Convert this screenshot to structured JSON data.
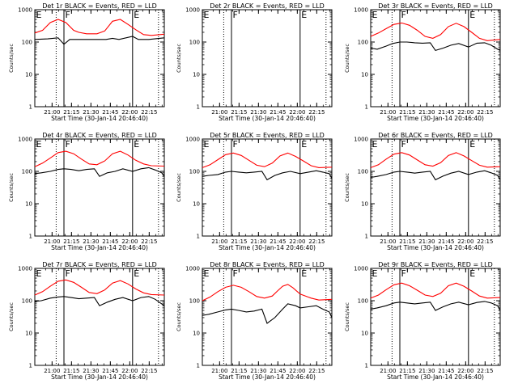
{
  "figure": {
    "xlabel": "Start Time (30-Jan-14 20:46:40)",
    "ylabel": "Counts/sec",
    "y_scale": "log",
    "ylim": [
      1,
      1000
    ],
    "y_ticks": [
      1,
      10,
      100,
      1000
    ],
    "y_tick_labels": [
      "1",
      "10",
      "100",
      "1000"
    ],
    "x_range_min": [
      0,
      100
    ],
    "x_ticks_min": [
      13.33,
      28.33,
      43.33,
      58.33,
      73.33,
      88.33
    ],
    "x_tick_labels": [
      "21:00",
      "21:15",
      "21:30",
      "21:45",
      "22:00",
      "22:15"
    ],
    "colors": {
      "events": "#000000",
      "lld": "#ff0000"
    },
    "markers": [
      {
        "label": "E",
        "x_min": 0,
        "style": "solid"
      },
      {
        "label": "F",
        "x_min": 22.5,
        "style": "solid"
      },
      {
        "label": "E",
        "x_min": 75.5,
        "style": "solid"
      },
      {
        "line_x_min": 16.5,
        "style": "dotted"
      },
      {
        "line_x_min": 95.5,
        "style": "dotted"
      }
    ],
    "x_grid": false,
    "y_grid": false
  },
  "chart_data": [
    {
      "type": "line",
      "title": "Det 1r BLACK = Events, RED = LLD",
      "series": [
        {
          "name": "Events",
          "color": "#000000",
          "x_min": [
            0,
            10,
            18,
            22.5,
            27,
            36,
            45,
            55,
            60,
            65,
            75.5,
            80,
            88,
            100
          ],
          "y": [
            120,
            125,
            135,
            85,
            120,
            120,
            120,
            120,
            130,
            120,
            150,
            120,
            120,
            135
          ]
        },
        {
          "name": "LLD",
          "color": "#ff0000",
          "x_min": [
            0,
            6,
            12,
            18,
            24,
            30,
            34,
            40,
            48,
            54,
            60,
            66,
            72,
            78,
            84,
            90,
            100
          ],
          "y": [
            190,
            230,
            400,
            500,
            400,
            230,
            200,
            180,
            180,
            220,
            440,
            500,
            350,
            240,
            170,
            160,
            175
          ]
        }
      ]
    },
    {
      "type": "line",
      "title": "Det 2r BLACK = Events, RED = LLD",
      "series": [
        {
          "name": "Events",
          "color": "#000000",
          "x_min": [],
          "y": []
        },
        {
          "name": "LLD",
          "color": "#ff0000",
          "x_min": [],
          "y": []
        }
      ]
    },
    {
      "type": "line",
      "title": "Det 3r BLACK = Events, RED = LLD",
      "series": [
        {
          "name": "Events",
          "color": "#000000",
          "x_min": [
            0,
            5,
            12,
            17,
            22.5,
            28,
            34,
            40,
            46,
            50,
            56,
            62,
            68,
            75.5,
            82,
            88,
            93,
            98,
            100
          ],
          "y": [
            65,
            60,
            75,
            90,
            100,
            100,
            95,
            92,
            95,
            55,
            65,
            80,
            90,
            70,
            92,
            95,
            80,
            60,
            55
          ]
        },
        {
          "name": "LLD",
          "color": "#ff0000",
          "x_min": [
            0,
            6,
            12,
            18,
            24,
            30,
            36,
            42,
            48,
            54,
            60,
            66,
            72,
            78,
            84,
            90,
            100
          ],
          "y": [
            150,
            190,
            260,
            350,
            390,
            330,
            230,
            150,
            130,
            170,
            300,
            380,
            300,
            200,
            130,
            110,
            120
          ]
        }
      ]
    },
    {
      "type": "line",
      "title": "Det 4r BLACK = Events, RED = LLD",
      "series": [
        {
          "name": "Events",
          "color": "#000000",
          "x_min": [
            0,
            5,
            12,
            18,
            22.5,
            28,
            34,
            40,
            46,
            50,
            56,
            62,
            68,
            75.5,
            82,
            88,
            93,
            98,
            100
          ],
          "y": [
            85,
            90,
            100,
            115,
            120,
            115,
            105,
            115,
            120,
            70,
            90,
            100,
            120,
            100,
            120,
            130,
            110,
            90,
            70
          ]
        },
        {
          "name": "LLD",
          "color": "#ff0000",
          "x_min": [
            0,
            6,
            12,
            18,
            24,
            30,
            36,
            42,
            48,
            54,
            60,
            66,
            72,
            78,
            84,
            90,
            100
          ],
          "y": [
            140,
            180,
            260,
            380,
            420,
            350,
            240,
            170,
            160,
            210,
            350,
            420,
            320,
            220,
            170,
            150,
            145
          ]
        }
      ]
    },
    {
      "type": "line",
      "title": "Det 5r BLACK = Events, RED = LLD",
      "series": [
        {
          "name": "Events",
          "color": "#000000",
          "x_min": [
            0,
            5,
            12,
            18,
            22.5,
            28,
            34,
            40,
            46,
            50,
            56,
            62,
            68,
            75.5,
            82,
            88,
            93,
            98,
            100
          ],
          "y": [
            70,
            75,
            80,
            95,
            100,
            95,
            90,
            95,
            100,
            55,
            75,
            90,
            100,
            85,
            95,
            105,
            95,
            85,
            60
          ]
        },
        {
          "name": "LLD",
          "color": "#ff0000",
          "x_min": [
            0,
            6,
            12,
            18,
            24,
            30,
            36,
            42,
            48,
            54,
            60,
            66,
            72,
            78,
            84,
            90,
            100
          ],
          "y": [
            130,
            160,
            230,
            330,
            370,
            310,
            220,
            155,
            140,
            180,
            300,
            370,
            290,
            210,
            150,
            130,
            135
          ]
        }
      ]
    },
    {
      "type": "line",
      "title": "Det 6r BLACK = Events, RED = LLD",
      "series": [
        {
          "name": "Events",
          "color": "#000000",
          "x_min": [
            0,
            5,
            12,
            18,
            22.5,
            28,
            34,
            40,
            46,
            50,
            56,
            62,
            68,
            75.5,
            82,
            88,
            93,
            98,
            100
          ],
          "y": [
            65,
            70,
            80,
            95,
            100,
            95,
            88,
            95,
            100,
            55,
            72,
            88,
            100,
            80,
            95,
            105,
            90,
            75,
            55
          ]
        },
        {
          "name": "LLD",
          "color": "#ff0000",
          "x_min": [
            0,
            6,
            12,
            18,
            24,
            30,
            36,
            42,
            48,
            54,
            60,
            66,
            72,
            78,
            84,
            90,
            100
          ],
          "y": [
            130,
            160,
            240,
            340,
            380,
            320,
            225,
            160,
            145,
            185,
            310,
            380,
            300,
            215,
            155,
            135,
            140
          ]
        }
      ]
    },
    {
      "type": "line",
      "title": "Det 7r BLACK = Events, RED = LLD",
      "series": [
        {
          "name": "Events",
          "color": "#000000",
          "x_min": [
            0,
            5,
            12,
            18,
            22.5,
            28,
            34,
            40,
            46,
            50,
            56,
            62,
            68,
            75.5,
            82,
            88,
            93,
            98,
            100
          ],
          "y": [
            95,
            100,
            120,
            130,
            135,
            125,
            115,
            120,
            125,
            70,
            90,
            110,
            125,
            100,
            125,
            135,
            110,
            80,
            70
          ]
        },
        {
          "name": "LLD",
          "color": "#ff0000",
          "x_min": [
            0,
            6,
            12,
            18,
            24,
            30,
            36,
            42,
            48,
            54,
            60,
            66,
            72,
            78,
            84,
            90,
            100
          ],
          "y": [
            150,
            190,
            280,
            400,
            440,
            370,
            260,
            180,
            165,
            215,
            350,
            420,
            330,
            230,
            175,
            155,
            150
          ]
        }
      ]
    },
    {
      "type": "line",
      "title": "Det 8r BLACK = Events, RED = LLD",
      "series": [
        {
          "name": "Events",
          "color": "#000000",
          "x_min": [
            0,
            5,
            12,
            18,
            22.5,
            28,
            34,
            40,
            46,
            50,
            56,
            62,
            66,
            72,
            75.5,
            82,
            88,
            93,
            98,
            100
          ],
          "y": [
            35,
            38,
            45,
            52,
            55,
            50,
            45,
            48,
            55,
            20,
            30,
            55,
            80,
            70,
            60,
            65,
            70,
            55,
            45,
            30
          ]
        },
        {
          "name": "LLD",
          "color": "#ff0000",
          "x_min": [
            0,
            6,
            12,
            18,
            24,
            30,
            36,
            42,
            48,
            54,
            58,
            62,
            66,
            70,
            75.5,
            84,
            90,
            100
          ],
          "y": [
            100,
            130,
            190,
            260,
            300,
            260,
            190,
            135,
            120,
            140,
            200,
            280,
            320,
            250,
            160,
            120,
            105,
            110
          ]
        }
      ]
    },
    {
      "type": "line",
      "title": "Det 9r BLACK = Events, RED = LLD",
      "series": [
        {
          "name": "Events",
          "color": "#000000",
          "x_min": [
            0,
            5,
            12,
            18,
            22.5,
            28,
            34,
            40,
            46,
            50,
            56,
            62,
            68,
            75.5,
            82,
            88,
            93,
            98,
            100
          ],
          "y": [
            55,
            60,
            70,
            85,
            90,
            85,
            80,
            85,
            90,
            50,
            65,
            80,
            90,
            75,
            88,
            95,
            85,
            70,
            50
          ]
        },
        {
          "name": "LLD",
          "color": "#ff0000",
          "x_min": [
            0,
            6,
            12,
            18,
            24,
            30,
            36,
            42,
            48,
            54,
            60,
            66,
            72,
            78,
            84,
            90,
            100
          ],
          "y": [
            120,
            150,
            220,
            310,
            350,
            290,
            210,
            150,
            135,
            170,
            290,
            350,
            280,
            200,
            140,
            120,
            125
          ]
        }
      ]
    }
  ]
}
